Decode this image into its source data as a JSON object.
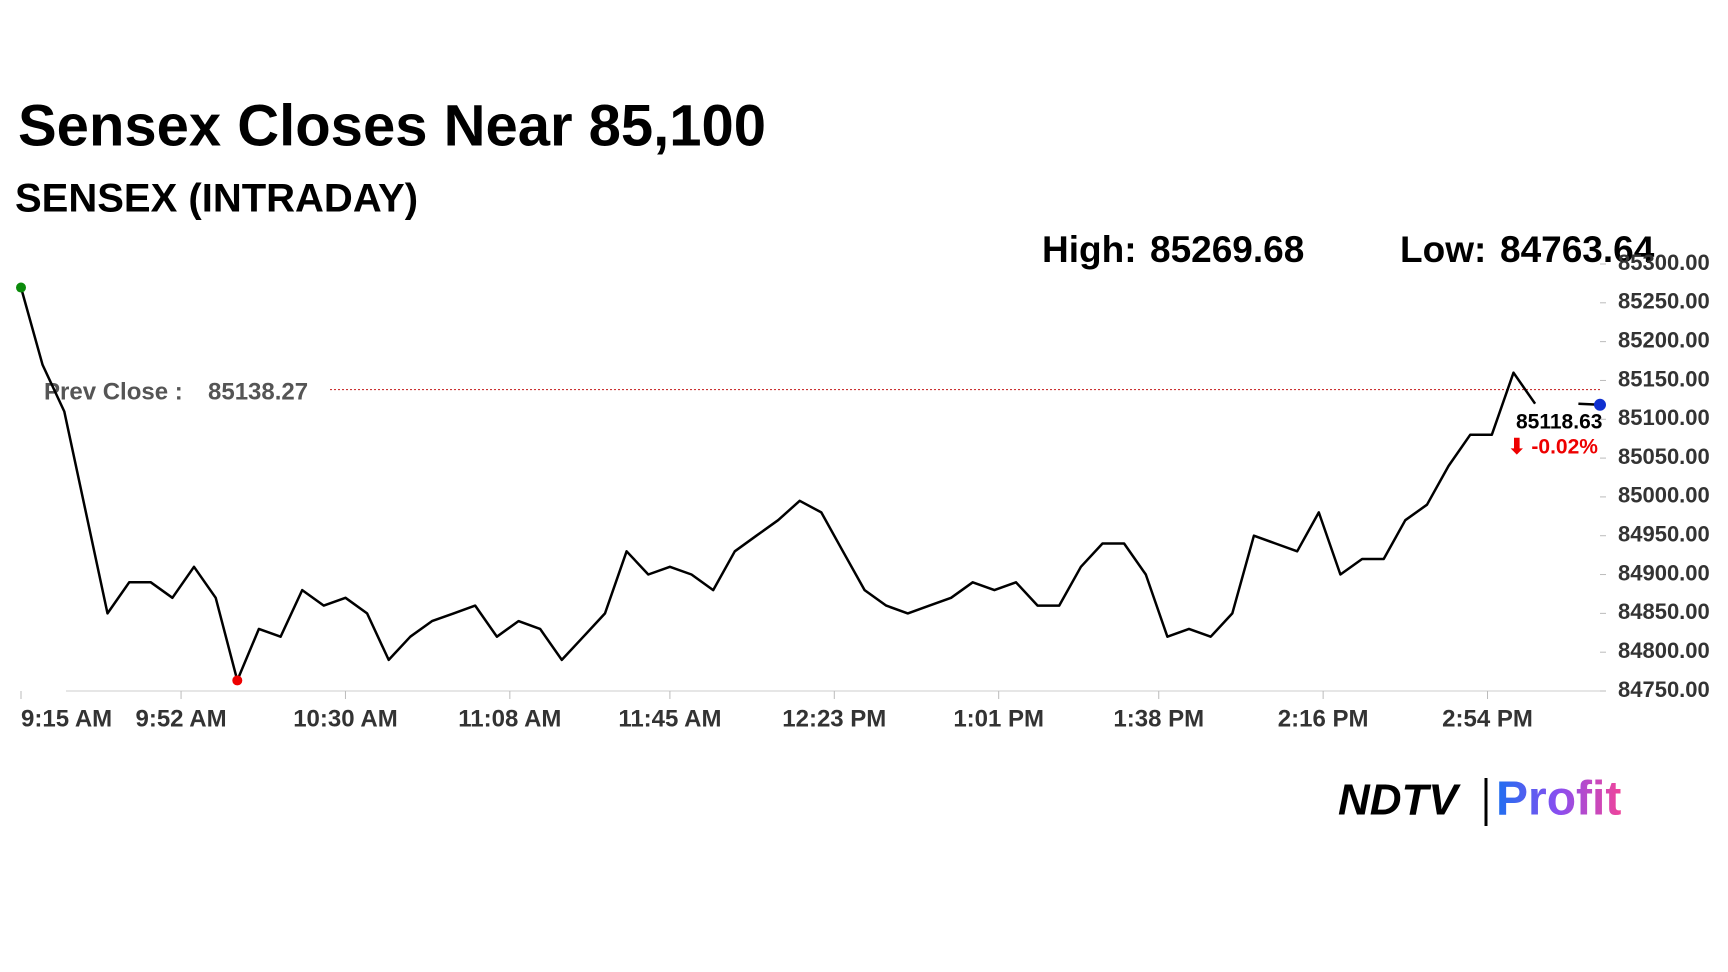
{
  "chart_data": {
    "type": "line",
    "title": "Sensex Closes Near 85,100",
    "subtitle": "SENSEX (INTRADAY)",
    "high_label": "High:",
    "high": 85269.68,
    "low_label": "Low:",
    "low": 84763.64,
    "prev_close_label": "Prev Close :",
    "prev_close": 85138.27,
    "last": 85118.63,
    "change": "⬇ -0.02%",
    "color": "#000000",
    "x": [
      "9:15 AM",
      "9:20 AM",
      "9:25 AM",
      "9:30 AM",
      "9:35 AM",
      "9:40 AM",
      "9:45 AM",
      "9:50 AM",
      "9:55 AM",
      "10:00 AM",
      "10:05 AM",
      "10:10 AM",
      "10:15 AM",
      "10:20 AM",
      "10:25 AM",
      "10:30 AM",
      "10:35 AM",
      "10:40 AM",
      "10:45 AM",
      "10:50 AM",
      "10:55 AM",
      "11:00 AM",
      "11:05 AM",
      "11:10 AM",
      "11:15 AM",
      "11:20 AM",
      "11:25 AM",
      "11:30 AM",
      "11:35 AM",
      "11:40 AM",
      "11:45 AM",
      "11:50 AM",
      "11:55 AM",
      "12:00 PM",
      "12:05 PM",
      "12:10 PM",
      "12:15 PM",
      "12:20 PM",
      "12:25 PM",
      "12:30 PM",
      "12:35 PM",
      "12:40 PM",
      "12:45 PM",
      "12:50 PM",
      "12:55 PM",
      "1:00 PM",
      "1:05 PM",
      "1:10 PM",
      "1:15 PM",
      "1:20 PM",
      "1:25 PM",
      "1:30 PM",
      "1:35 PM",
      "1:40 PM",
      "1:45 PM",
      "1:50 PM",
      "1:55 PM",
      "2:00 PM",
      "2:05 PM",
      "2:10 PM",
      "2:15 PM",
      "2:20 PM",
      "2:25 PM",
      "2:30 PM",
      "2:35 PM",
      "2:40 PM",
      "2:45 PM",
      "2:50 PM",
      "2:55 PM",
      "3:00 PM",
      "3:05 PM",
      "3:10 PM",
      "3:15 PM",
      "3:20 PM"
    ],
    "values": [
      85269.68,
      85170,
      85110,
      84980,
      84850,
      84890,
      84890,
      84870,
      84910,
      84870,
      84763.64,
      84830,
      84820,
      84880,
      84860,
      84870,
      84850,
      84790,
      84820,
      84840,
      84850,
      84860,
      84820,
      84840,
      84830,
      84790,
      84820,
      84850,
      84930,
      84900,
      84910,
      84900,
      84880,
      84930,
      84950,
      84970,
      84995,
      84980,
      84930,
      84880,
      84860,
      84850,
      84860,
      84870,
      84890,
      84880,
      84890,
      84860,
      84860,
      84910,
      84940,
      84940,
      84900,
      84820,
      84830,
      84820,
      84850,
      84950,
      84940,
      84930,
      84980,
      84900,
      84920,
      84920,
      84970,
      84990,
      85040,
      85080,
      85080,
      85160,
      85120,
      null,
      85120,
      85118.63
    ],
    "xlim": [
      "9:15 AM",
      "3:20 PM"
    ],
    "xticks": [
      "9:15 AM",
      "9:52 AM",
      "10:30 AM",
      "11:08 AM",
      "11:45 AM",
      "12:23 PM",
      "1:01 PM",
      "1:38 PM",
      "2:16 PM",
      "2:54 PM"
    ],
    "ylim": [
      84750,
      85300
    ],
    "yticks": [
      {
        "value": 84750,
        "label": "84750.00"
      },
      {
        "value": 84800,
        "label": "84800.00"
      },
      {
        "value": 84850,
        "label": "84850.00"
      },
      {
        "value": 84900,
        "label": "84900.00"
      },
      {
        "value": 84950,
        "label": "84950.00"
      },
      {
        "value": 85000,
        "label": "85000.00"
      },
      {
        "value": 85050,
        "label": "85050.00"
      },
      {
        "value": 85100,
        "label": "85100.00"
      },
      {
        "value": 85150,
        "label": "85150.00"
      },
      {
        "value": 85200,
        "label": "85200.00"
      },
      {
        "value": 85250,
        "label": "85250.00"
      },
      {
        "value": 85300,
        "label": "85300.00"
      }
    ],
    "brand_left": "NDTV",
    "brand_right": "Profit"
  }
}
